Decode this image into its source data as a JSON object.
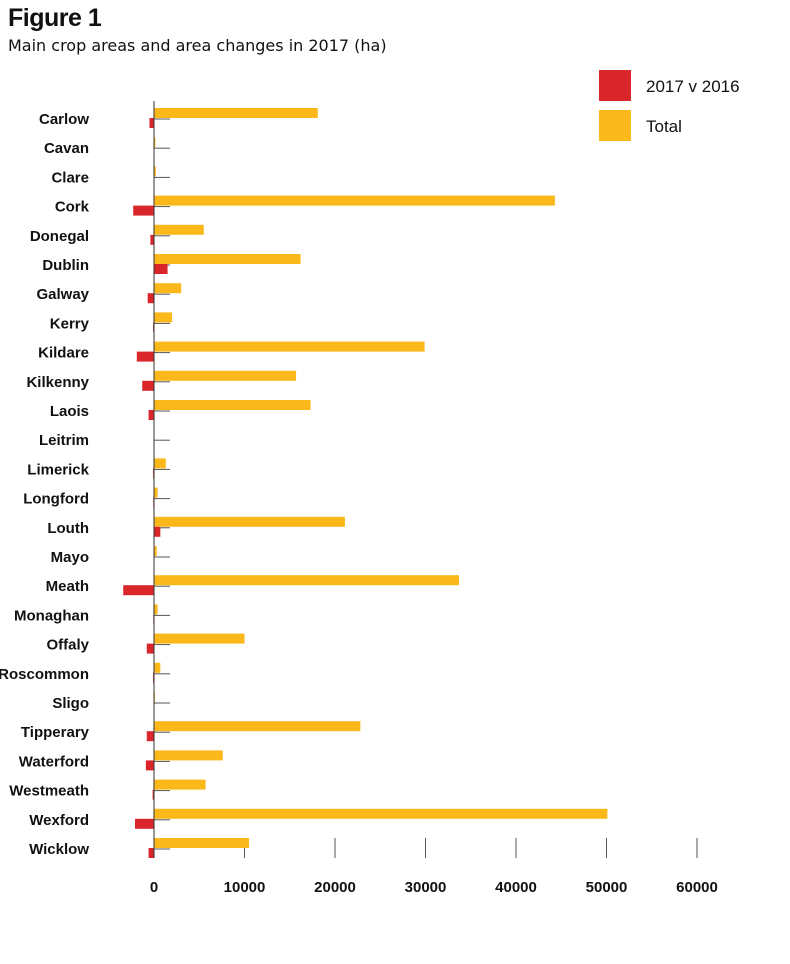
{
  "figure": {
    "title": "Figure 1",
    "subtitle": "Main crop areas and area changes in 2017 (ha)"
  },
  "colors": {
    "change": "#d9262b",
    "total": "#fbb81b",
    "gridline": "#555555",
    "axis": "#333333"
  },
  "chart_data": {
    "type": "bar",
    "orientation": "horizontal",
    "title": "Main crop areas and area changes in 2017 (ha)",
    "xlabel": "",
    "ylabel": "",
    "xlim": [
      0,
      60000
    ],
    "xticks": [
      0,
      10000,
      20000,
      30000,
      40000,
      50000,
      60000
    ],
    "xtick_labels": [
      "0",
      "10000",
      "20000",
      "30000",
      "40000",
      "50000",
      "60000"
    ],
    "legend_position": "top-right",
    "categories": [
      "Carlow",
      "Cavan",
      "Clare",
      "Cork",
      "Donegal",
      "Dublin",
      "Galway",
      "Kerry",
      "Kildare",
      "Kilkenny",
      "Laois",
      "Leitrim",
      "Limerick",
      "Longford",
      "Louth",
      "Mayo",
      "Meath",
      "Monaghan",
      "Offaly",
      "Roscommon",
      "Sligo",
      "Tipperary",
      "Waterford",
      "Westmeath",
      "Wexford",
      "Wicklow"
    ],
    "series": [
      {
        "name": "2017 v 2016",
        "color": "#d9262b",
        "values": [
          -500,
          -50,
          -50,
          -2300,
          -400,
          1500,
          -700,
          -100,
          -1900,
          -1300,
          -600,
          -20,
          -100,
          -80,
          700,
          -50,
          -3400,
          -80,
          -800,
          -100,
          -30,
          -800,
          -900,
          -150,
          -2100,
          -600
        ]
      },
      {
        "name": "Total",
        "color": "#fbb81b",
        "values": [
          18100,
          150,
          200,
          44300,
          5500,
          16200,
          3000,
          2000,
          29900,
          15700,
          17300,
          50,
          1300,
          400,
          21100,
          300,
          33700,
          400,
          10000,
          700,
          100,
          22800,
          7600,
          5700,
          50100,
          10500
        ]
      }
    ]
  }
}
